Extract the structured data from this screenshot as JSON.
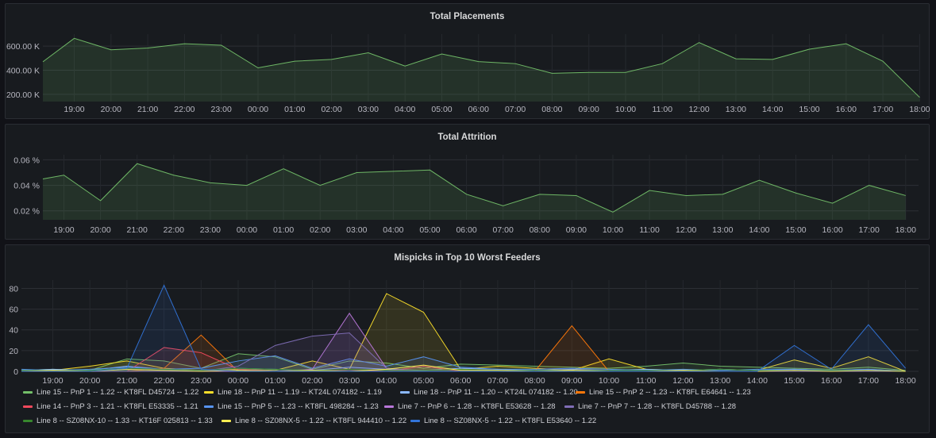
{
  "panels": [
    {
      "title": "Total Placements",
      "chart_data": {
        "type": "area",
        "x": [
          "18:20",
          "19:00",
          "20:00",
          "21:00",
          "22:00",
          "23:00",
          "00:00",
          "01:00",
          "02:00",
          "03:00",
          "04:00",
          "05:00",
          "06:00",
          "07:00",
          "08:00",
          "09:00",
          "10:00",
          "11:00",
          "12:00",
          "13:00",
          "14:00",
          "15:00",
          "16:00",
          "17:00",
          "18:00"
        ],
        "x_ticks": [
          "19:00",
          "20:00",
          "21:00",
          "22:00",
          "23:00",
          "00:00",
          "01:00",
          "02:00",
          "03:00",
          "04:00",
          "05:00",
          "06:00",
          "07:00",
          "08:00",
          "09:00",
          "10:00",
          "11:00",
          "12:00",
          "13:00",
          "14:00",
          "15:00",
          "16:00",
          "17:00",
          "18:00"
        ],
        "series": [
          {
            "color": "#73bf69",
            "values": [
              470,
              665,
              570,
              585,
              620,
              608,
              420,
              475,
              490,
              545,
              435,
              535,
              472,
              455,
              375,
              382,
              382,
              455,
              630,
              495,
              490,
              575,
              620,
              475,
              175
            ]
          }
        ],
        "y_ticks": [
          200,
          400,
          600
        ],
        "y_tick_labels": [
          "200.00 K",
          "400.00 K",
          "600.00 K"
        ],
        "ylim": [
          140,
          700
        ]
      }
    },
    {
      "title": "Total Attrition",
      "chart_data": {
        "type": "area",
        "x": [
          "18:20",
          "19:00",
          "20:00",
          "21:00",
          "22:00",
          "23:00",
          "00:00",
          "01:00",
          "02:00",
          "03:00",
          "04:00",
          "05:00",
          "06:00",
          "07:00",
          "08:00",
          "09:00",
          "10:00",
          "11:00",
          "12:00",
          "13:00",
          "14:00",
          "15:00",
          "16:00",
          "17:00",
          "18:00"
        ],
        "x_ticks": [
          "19:00",
          "20:00",
          "21:00",
          "22:00",
          "23:00",
          "00:00",
          "01:00",
          "02:00",
          "03:00",
          "04:00",
          "05:00",
          "06:00",
          "07:00",
          "08:00",
          "09:00",
          "10:00",
          "11:00",
          "12:00",
          "13:00",
          "14:00",
          "15:00",
          "16:00",
          "17:00",
          "18:00"
        ],
        "series": [
          {
            "color": "#73bf69",
            "values": [
              0.045,
              0.048,
              0.028,
              0.057,
              0.048,
              0.042,
              0.04,
              0.053,
              0.04,
              0.05,
              0.051,
              0.052,
              0.033,
              0.024,
              0.033,
              0.032,
              0.019,
              0.036,
              0.032,
              0.033,
              0.044,
              0.034,
              0.026,
              0.04,
              0.032
            ]
          }
        ],
        "y_ticks": [
          0.02,
          0.04,
          0.06
        ],
        "y_tick_labels": [
          "0.02 %",
          "0.04 %",
          "0.06 %"
        ],
        "ylim": [
          0.013,
          0.064
        ]
      }
    },
    {
      "title": "Mispicks in Top 10 Worst Feeders",
      "chart_data": {
        "type": "area",
        "x": [
          "18:20",
          "19:00",
          "20:00",
          "21:00",
          "22:00",
          "23:00",
          "00:00",
          "01:00",
          "02:00",
          "03:00",
          "04:00",
          "05:00",
          "06:00",
          "07:00",
          "08:00",
          "09:00",
          "10:00",
          "11:00",
          "12:00",
          "13:00",
          "14:00",
          "15:00",
          "16:00",
          "17:00",
          "18:00"
        ],
        "x_ticks": [
          "19:00",
          "20:00",
          "21:00",
          "22:00",
          "23:00",
          "00:00",
          "01:00",
          "02:00",
          "03:00",
          "04:00",
          "05:00",
          "06:00",
          "07:00",
          "08:00",
          "09:00",
          "10:00",
          "11:00",
          "12:00",
          "13:00",
          "14:00",
          "15:00",
          "16:00",
          "17:00",
          "18:00"
        ],
        "y_ticks": [
          0,
          20,
          40,
          60,
          80
        ],
        "y_tick_labels": [
          "0",
          "20",
          "40",
          "60",
          "80"
        ],
        "ylim": [
          0,
          88
        ],
        "series": [
          {
            "name": "Line 15 -- PnP 1 -- 1.22 -- KT8FL D45724 -- 1.22",
            "color": "#73bf69",
            "values": [
              1,
              2,
              1,
              12,
              10,
              3,
              17,
              14,
              2,
              10,
              8,
              3,
              7,
              6,
              5,
              4,
              3,
              5,
              8,
              5,
              4,
              3,
              2,
              4,
              1
            ]
          },
          {
            "name": "Line 18 -- PnP 11 -- 1.19 -- KT24L 074182 -- 1.19",
            "color": "#fade2a",
            "values": [
              1,
              1,
              5,
              10,
              3,
              1,
              2,
              1,
              10,
              2,
              75,
              57,
              2,
              5,
              3,
              1,
              12,
              2,
              1,
              2,
              1,
              11,
              3,
              14,
              0
            ]
          },
          {
            "name": "Line 18 -- PnP 11 -- 1.20 -- KT24L 074182 -- 1.20",
            "color": "#8ab8ff",
            "values": [
              1,
              2,
              1,
              5,
              2,
              1,
              3,
              2,
              1,
              4,
              2,
              1,
              3,
              2,
              1,
              2,
              1,
              2,
              1,
              2,
              1,
              2,
              1,
              2,
              0
            ]
          },
          {
            "name": "Line 15 -- PnP 2 -- 1.23 -- KT8FL E64641 -- 1.23",
            "color": "#ff780a",
            "values": [
              0,
              0,
              0,
              0,
              3,
              35,
              0,
              0,
              0,
              2,
              0,
              0,
              0,
              0,
              0,
              44,
              0,
              0,
              0,
              0,
              0,
              0,
              0,
              0,
              0
            ]
          },
          {
            "name": "Line 14 -- PnP 3 -- 1.21 -- KT8FL E53335 -- 1.21",
            "color": "#f2495c",
            "values": [
              0,
              0,
              0,
              0,
              23,
              18,
              2,
              0,
              0,
              2,
              0,
              5,
              0,
              0,
              0,
              0,
              0,
              0,
              0,
              0,
              0,
              0,
              0,
              0,
              0
            ]
          },
          {
            "name": "Line 15 -- PnP 5 -- 1.23 -- KT8FL 498284 -- 1.23",
            "color": "#5794f2",
            "values": [
              2,
              1,
              2,
              4,
              2,
              3,
              10,
              15,
              3,
              12,
              5,
              14,
              4,
              2,
              2,
              3,
              2,
              1,
              2,
              1,
              2,
              2,
              1,
              2,
              0
            ]
          },
          {
            "name": "Line 7 -- PnP 6 -- 1.28 -- KT8FL E53628 -- 1.28",
            "color": "#b877d9",
            "values": [
              0,
              0,
              0,
              0,
              0,
              0,
              0,
              0,
              2,
              56,
              3,
              0,
              0,
              0,
              0,
              0,
              0,
              0,
              0,
              0,
              0,
              0,
              0,
              0,
              0
            ]
          },
          {
            "name": "Line 7 -- PnP 7 -- 1.28 -- KT8FL D45788 -- 1.28",
            "color": "#806eb7",
            "values": [
              0,
              0,
              0,
              0,
              0,
              0,
              5,
              25,
              34,
              37,
              3,
              0,
              0,
              0,
              0,
              0,
              0,
              0,
              0,
              0,
              0,
              0,
              0,
              0,
              0
            ]
          },
          {
            "name": "Line 8 -- SZ08NX-10 -- 1.33 -- KT16F 025813 -- 1.33",
            "color": "#37872d",
            "values": [
              1,
              1,
              1,
              3,
              2,
              1,
              3,
              2,
              1,
              2,
              1,
              1,
              2,
              1,
              1,
              1,
              1,
              1,
              1,
              2,
              1,
              1,
              1,
              1,
              0
            ]
          },
          {
            "name": "Line 8 -- SZ08NX-5 -- 1.22 -- KT8FL 944410 -- 1.22",
            "color": "#ffee52",
            "values": [
              0,
              1,
              0,
              2,
              1,
              0,
              1,
              0,
              1,
              0,
              2,
              6,
              1,
              1,
              0,
              1,
              0,
              0,
              1,
              0,
              0,
              1,
              0,
              1,
              0
            ]
          },
          {
            "name": "Line 8 -- SZ08NX-5 -- 1.22 -- KT8FL E53640 -- 1.22",
            "color": "#3274d9",
            "values": [
              0,
              0,
              0,
              3,
              83,
              2,
              0,
              0,
              0,
              0,
              0,
              0,
              0,
              0,
              0,
              0,
              0,
              0,
              0,
              0,
              0,
              25,
              2,
              45,
              3
            ]
          }
        ]
      }
    }
  ]
}
